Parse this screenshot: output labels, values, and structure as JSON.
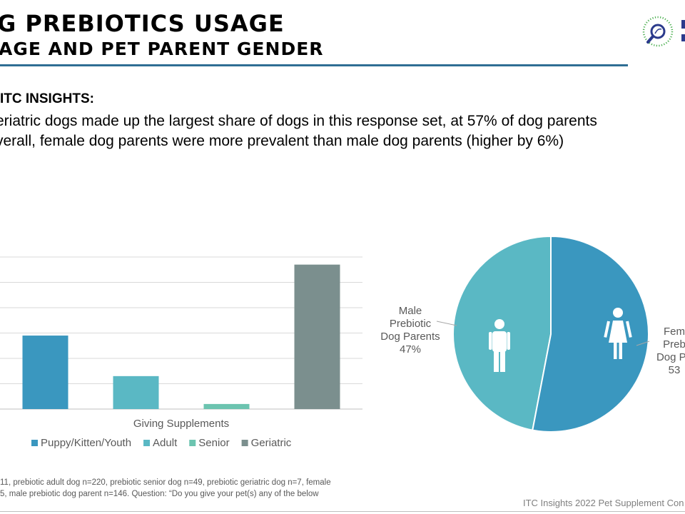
{
  "header": {
    "title_line1": "G PREBIOTICS USAGE",
    "title_line2": "AGE AND PET PARENT GENDER"
  },
  "insights": {
    "heading": "ITC INSIGHTS:",
    "line1": "eriatric dogs made up the largest share of dogs in this response set, at 57% of dog parents",
    "line2": "verall, female dog parents were more prevalent than male dog parents (higher by 6%)"
  },
  "footnote": {
    "line1": "11, prebiotic adult dog n=220,  prebiotic senior dog n=49, prebiotic geriatric dog n=7, female",
    "line2": "5, male prebiotic dog parent n=146. Question: “Do you give your pet(s) any of the below"
  },
  "source": "ITC Insights 2022 Pet Supplement Con",
  "chart_data": [
    {
      "type": "bar",
      "categories": [
        "Giving Supplements"
      ],
      "series": [
        {
          "name": "Puppy/Kitten/Youth",
          "values": [
            29
          ],
          "color": "#3a97bf"
        },
        {
          "name": "Adult",
          "values": [
            13
          ],
          "color": "#5ab8c4"
        },
        {
          "name": "Senior",
          "values": [
            2
          ],
          "color": "#6cc4b0"
        },
        {
          "name": "Geriatric",
          "values": [
            57
          ],
          "color": "#7b8f8e"
        }
      ],
      "xlabel": "Giving Supplements",
      "ylim": [
        0,
        60
      ],
      "grid": true,
      "legend": "bottom"
    },
    {
      "type": "pie",
      "slices": [
        {
          "label_lines": [
            "Male",
            "Prebiotic",
            "Dog Parents",
            "47%"
          ],
          "value": 47,
          "color": "#5ab8c4",
          "icon": "male-person-icon"
        },
        {
          "label_lines": [
            "Fem",
            "Preb",
            "Dog Pa",
            "53"
          ],
          "value": 53,
          "color": "#3a97bf",
          "icon": "female-person-icon"
        }
      ]
    }
  ]
}
